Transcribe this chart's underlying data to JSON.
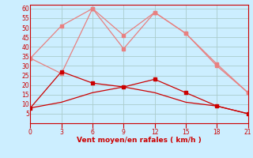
{
  "xlabel": "Vent moyen/en rafales ( km/h )",
  "x": [
    0,
    3,
    6,
    9,
    12,
    15,
    18,
    21
  ],
  "line1": [
    8,
    27,
    21,
    19,
    23,
    16,
    9,
    5
  ],
  "line2": [
    8,
    11,
    16,
    19,
    16,
    11,
    9,
    5
  ],
  "line3": [
    34,
    51,
    60,
    46,
    58,
    47,
    30,
    16
  ],
  "line4": [
    34,
    26,
    60,
    39,
    58,
    47,
    31,
    16
  ],
  "color_dark": "#cc0000",
  "color_light": "#e88080",
  "bg_color": "#cceeff",
  "grid_color": "#aacccc",
  "axis_color": "#cc0000",
  "ylim": [
    0,
    62
  ],
  "yticks": [
    5,
    10,
    15,
    20,
    25,
    30,
    35,
    40,
    45,
    50,
    55,
    60
  ],
  "xticks": [
    0,
    3,
    6,
    9,
    12,
    15,
    18,
    21
  ]
}
